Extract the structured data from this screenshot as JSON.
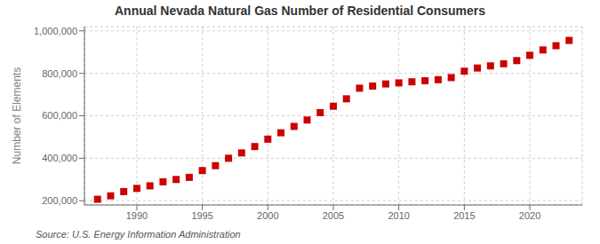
{
  "chart_data": {
    "type": "scatter",
    "title": "Annual Nevada Natural Gas Number of Residential Consumers",
    "ylabel": "Number of Elements",
    "source": "Source: U.S. Energy Information Administration",
    "x": [
      1987,
      1988,
      1989,
      1990,
      1991,
      1992,
      1993,
      1994,
      1995,
      1996,
      1997,
      1998,
      1999,
      2000,
      2001,
      2002,
      2003,
      2004,
      2005,
      2006,
      2007,
      2008,
      2009,
      2010,
      2011,
      2012,
      2013,
      2014,
      2015,
      2016,
      2017,
      2018,
      2019,
      2020,
      2021,
      2022,
      2023
    ],
    "values": [
      207000,
      223000,
      243000,
      258000,
      270000,
      289000,
      300000,
      310000,
      342000,
      365000,
      400000,
      425000,
      455000,
      490000,
      520000,
      550000,
      580000,
      615000,
      645000,
      680000,
      730000,
      740000,
      750000,
      755000,
      760000,
      765000,
      770000,
      780000,
      810000,
      825000,
      835000,
      845000,
      860000,
      885000,
      910000,
      930000,
      955000
    ],
    "color": "#cc0000",
    "marker": "square",
    "xlim": [
      1986,
      2024
    ],
    "ylim": [
      180000,
      1020000
    ],
    "xticks": [
      1990,
      1995,
      2000,
      2005,
      2010,
      2015,
      2020
    ],
    "yticks": [
      {
        "value": 200000,
        "label": "200,000"
      },
      {
        "value": 400000,
        "label": "400,000"
      },
      {
        "value": 600000,
        "label": "600,000"
      },
      {
        "value": 800000,
        "label": "800,000"
      },
      {
        "value": 1000000,
        "label": "1,000,000"
      }
    ],
    "grid": true
  }
}
